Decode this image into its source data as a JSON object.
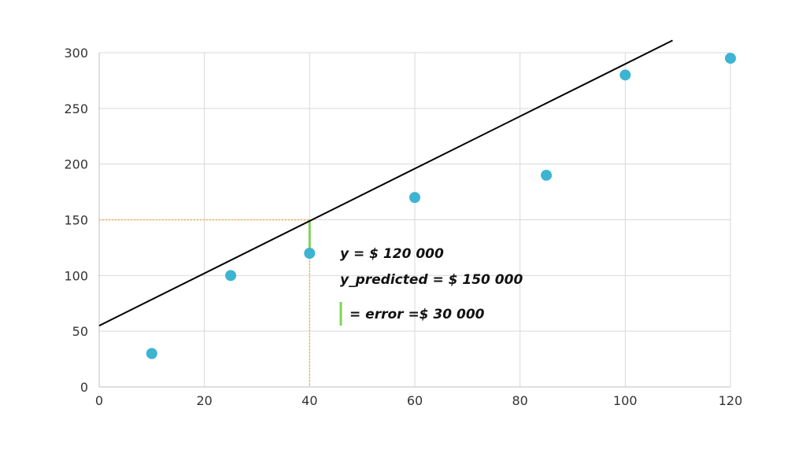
{
  "chart_data": {
    "type": "scatter",
    "title": "",
    "xlabel": "",
    "ylabel": "",
    "xlim": [
      0,
      120
    ],
    "ylim": [
      0,
      300
    ],
    "x_ticks": [
      0,
      20,
      40,
      60,
      80,
      100,
      120
    ],
    "y_ticks": [
      0,
      50,
      100,
      150,
      200,
      250,
      300
    ],
    "grid": true,
    "series": [
      {
        "points": [
          {
            "x": 10,
            "y": 30
          },
          {
            "x": 25,
            "y": 100
          },
          {
            "x": 40,
            "y": 120
          },
          {
            "x": 60,
            "y": 170
          },
          {
            "x": 85,
            "y": 190
          },
          {
            "x": 100,
            "y": 280
          },
          {
            "x": 120,
            "y": 295
          }
        ],
        "color": "#3cb4d2"
      }
    ],
    "regression_line": {
      "start": {
        "x": 0,
        "y": 55
      },
      "end": {
        "x": 109,
        "y": 311
      },
      "color": "#000000"
    },
    "guide_lines": {
      "x": 40,
      "y": 150,
      "color": "#f0b050"
    },
    "error_segment": {
      "x": 40,
      "y_from": 120,
      "y_to": 150,
      "color": "#7fd35a"
    },
    "annotations": {
      "actual": "y = $ 120 000",
      "predicted": "y_predicted = $ 150 000",
      "error": "= error =$ 30 000"
    }
  }
}
